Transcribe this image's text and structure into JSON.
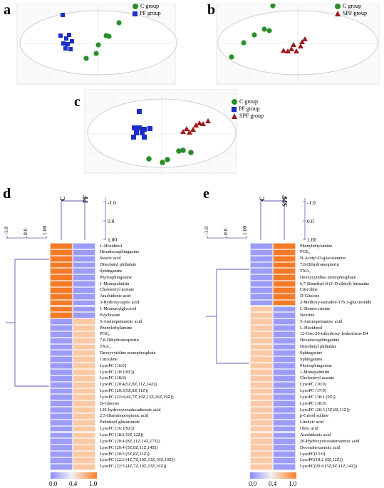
{
  "panels": {
    "a": {
      "letter": "a",
      "legend": [
        {
          "label": "C group",
          "symbol": "circle",
          "color": "#2a8f2a"
        },
        {
          "label": "PF group",
          "symbol": "square",
          "color": "#1c2fc4"
        }
      ]
    },
    "b": {
      "letter": "b",
      "legend": [
        {
          "label": "C group",
          "symbol": "circle",
          "color": "#2a8f2a"
        },
        {
          "label": "SPF group",
          "symbol": "triangle",
          "color": "#9e1a1a"
        }
      ]
    },
    "c": {
      "letter": "c",
      "legend": [
        {
          "label": "C group",
          "symbol": "circle",
          "color": "#2a8f2a"
        },
        {
          "label": "PF group",
          "symbol": "square",
          "color": "#1c2fc4"
        },
        {
          "label": "SPF group",
          "symbol": "triangle",
          "color": "#9e1a1a"
        }
      ]
    },
    "d": {
      "letter": "d",
      "columns": [
        "C",
        "PF"
      ],
      "scale_ticks": [
        "-1.0",
        "0.0",
        "1.00"
      ],
      "colorbar_ticks": [
        "0.0",
        "0.4",
        "1.0"
      ],
      "rows": [
        "L-Histidinol",
        "Hexadecasphinganine",
        "Stearic acid",
        "Diisobutyl phthalate",
        "Sphinganine",
        "Phytosphingosine",
        "1-Monopalmitin",
        "Cholesteryl acetate",
        "Arachidonic acid",
        "3-Hydroxycapric acid",
        "1-Monoacylglycerol",
        "Psychosine",
        "5-Aminopentanoic acid",
        "Phenylethylamine",
        "PGE₀",
        "7,8-Dihydroneopterin",
        "TXA₂",
        "Deoxycytidine monophosphate",
        "Citicoline",
        "LysoPC (16:0)",
        "LysoPC (18:1(9Z))",
        "LysoPC (18:0)",
        "LysoPC (20:4(5Z,8Z,11Z,14Z))",
        "LysoPC (20:3(5Z,8Z,11Z))",
        "LysoPC (22:6(4Z,7Z,10Z,13Z,16Z,19Z))",
        "D-Glucose",
        "13S-hydroxyoctadecadienoic acid",
        "2,3-Diaminopropionic acid",
        "Palmitoyl glucuronide",
        "LysoPC (16:1(9Z))",
        "LysoPC (18:2 (9Z,12Z))",
        "LysoPC (20:4 (8Z,11Z,14Z,17Z))",
        "LysoPC (20:4 (5Z,8Z,11Z,14Z))",
        "LysoPC (20:3 (5Z,8Z,11Z))",
        "LysoPC (22:6 (4Z,7Z,10Z,13Z,16Z,19Z))",
        "LysoPC (22:5 (4Z,7Z,10Z,13Z,16Z))"
      ],
      "c_high_count": 12
    },
    "e": {
      "letter": "e",
      "columns": [
        "C",
        "SPF"
      ],
      "scale_ticks": [
        "-1.0",
        "0.0",
        "1.00"
      ],
      "colorbar_ticks": [
        "0.0",
        "0.4",
        "1.0"
      ],
      "rows": [
        "Phenylethylamine",
        "PGE₀",
        "N-Acetyl-D-glucosamine",
        "7,8-Dihydroneopterin",
        "TXA₂",
        "Deoxycytidine monophosphate",
        "6,7-Dimethyl-8-(1-D-ribityl) lumazine",
        "Citicoline",
        "D-Glucose",
        "2-Methoxy-estradiol-17b 3-glucuronide",
        "L-Homocysteine",
        "Neurine",
        "5-Aminopentanoic acid",
        "L-Histidinol",
        "12-Oxo-20-trihydroxy-leukotriene B4",
        "Hexadecasphinganine",
        "Diisobutyl phthalate",
        "Sphingosine",
        "Sphinganine",
        "Phytosphingosine",
        "1-Monopalmitin",
        "Cholesteryl acetate",
        "LysoPC (16:0)",
        "LysoPC (17:0)",
        "LysoPC (18:1 (9Z))",
        "LysoPC (18:0)",
        "LysoPC (20:3 (5Z,8Z,11Z))",
        "p-Cresol sulfate",
        "Linoleic acid",
        "Oleic acid",
        "Arachidonic acid",
        "20-Hydroxyeicosatetraenoic acid",
        "Docosahexaenoic acid",
        "LysoPC(15:0)",
        "LysoPC(18:2 (9Z,12Z))",
        "LysoPC(20:4 (5Z,8Z,11Z,14Z))"
      ],
      "c_high_count": 0,
      "spf_high_count": 10
    }
  },
  "colors": {
    "high": "#f57a28",
    "low": "#9c9cf8",
    "light_high": "#fbc9a6",
    "dendro": "#5b5bb0"
  }
}
